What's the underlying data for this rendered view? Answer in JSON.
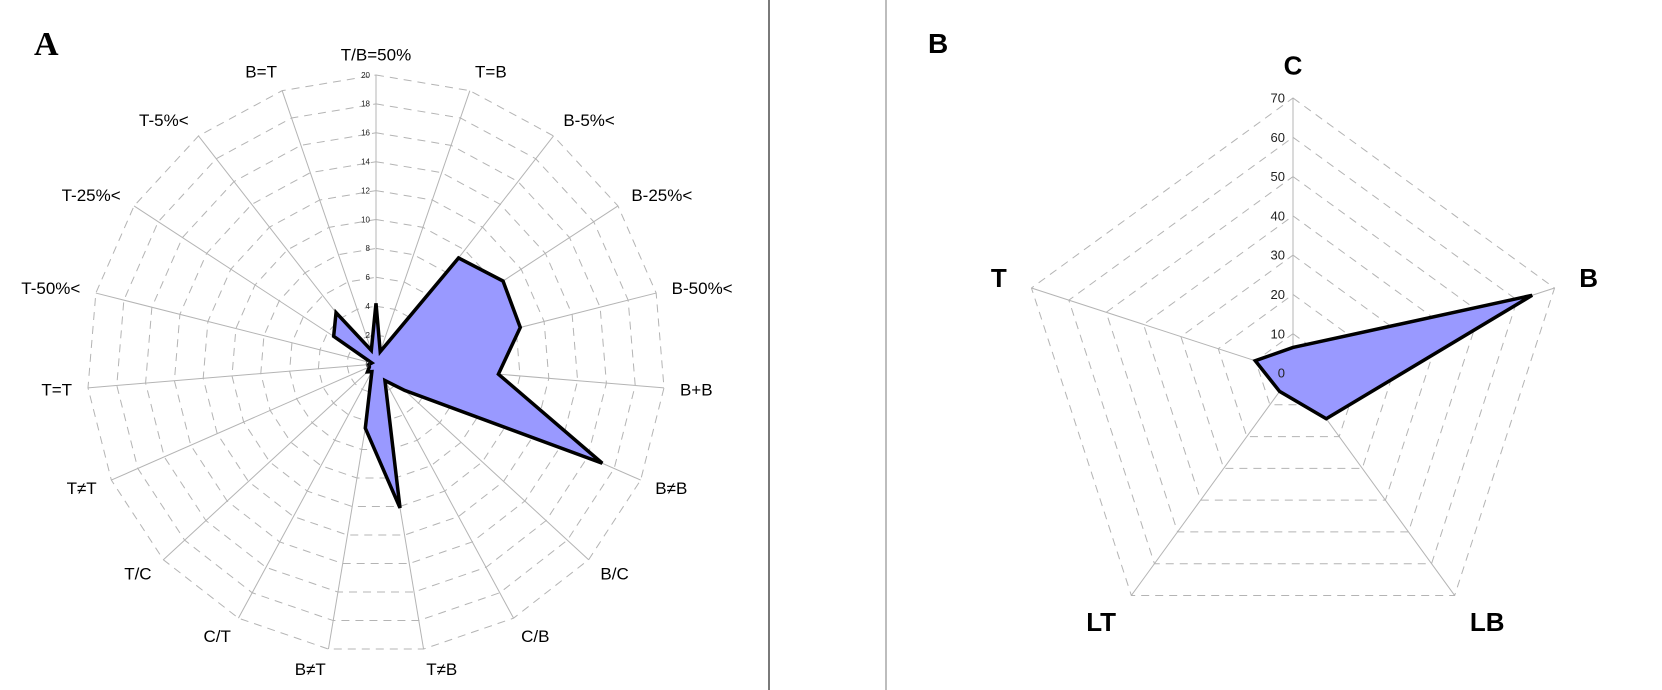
{
  "colors": {
    "fill": "#9999ff",
    "outline": "#000000",
    "grid": "#b4b4b4",
    "divider_left": "#7a7a7a",
    "divider_right": "#bdbdbd"
  },
  "chart_data": [
    {
      "type": "radar",
      "panel_label": "A",
      "axes": [
        "T/B=50%",
        "T=B",
        "B-5%<",
        "B-25%<",
        "B-50%<",
        "B+B",
        "B≠B",
        "B/C",
        "C/B",
        "T≠B",
        "B≠T",
        "C/T",
        "T/C",
        "T≠T",
        "T=T",
        "T-50%<",
        "T-25%<",
        "T-5%<",
        "B=T"
      ],
      "values": [
        4.2,
        0.9,
        9.3,
        10.5,
        10.3,
        8.5,
        17.1,
        2.7,
        1.3,
        10.1,
        4.5,
        0.6,
        0.8,
        0.5,
        0.5,
        0.3,
        3.5,
        4.5,
        1.0
      ],
      "rlim": [
        0,
        20
      ],
      "ticks": [
        "0",
        "2",
        "4",
        "6",
        "8",
        "10",
        "12",
        "14",
        "16",
        "18",
        "20"
      ],
      "grid": "dashed polygon rings"
    },
    {
      "type": "radar",
      "panel_label": "B",
      "axes": [
        "C",
        "B",
        "LB",
        "LT",
        "T"
      ],
      "values": [
        6.5,
        64,
        14.4,
        5.8,
        10.1
      ],
      "rlim": [
        0,
        70
      ],
      "ticks": [
        "0",
        "10",
        "20",
        "30",
        "40",
        "50",
        "60",
        "70"
      ],
      "grid": "dashed polygon rings"
    }
  ]
}
